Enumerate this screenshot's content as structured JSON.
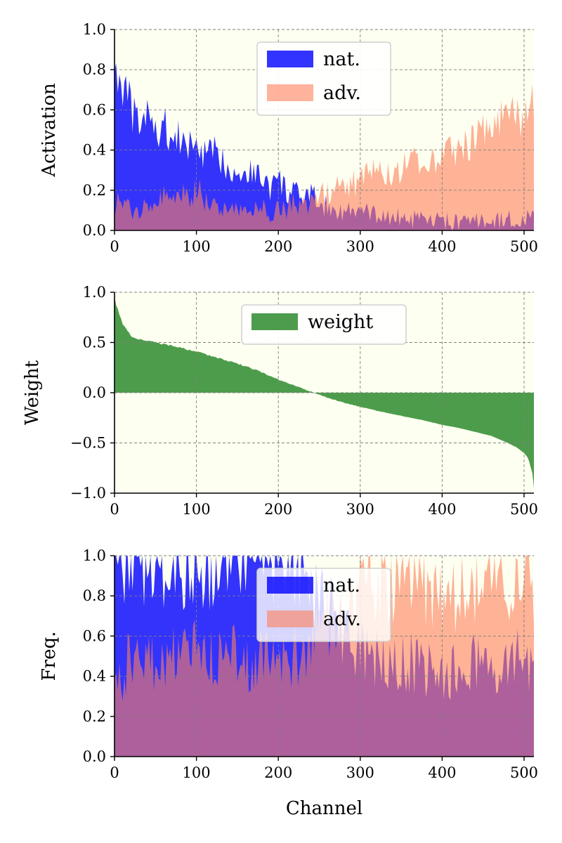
{
  "colors": {
    "nat": "#0000ff",
    "adv": "#ff7f5a",
    "weight": "#2e8b2e",
    "background": "#fdfff0",
    "overlap": "#9d4d96"
  },
  "chart_data": [
    {
      "type": "area",
      "ylabel": "Activation",
      "xlabel": "",
      "xlim": [
        0,
        512
      ],
      "ylim": [
        0,
        1
      ],
      "xticks": [
        "0",
        "100",
        "200",
        "300",
        "400",
        "500"
      ],
      "yticks": [
        "0.0",
        "0.2",
        "0.4",
        "0.6",
        "0.8",
        "1.0"
      ],
      "grid": true,
      "legend_position": "top-center",
      "legend": [
        "nat.",
        "adv."
      ],
      "series": [
        {
          "name": "nat.",
          "x": [
            0,
            5,
            10,
            20,
            30,
            40,
            50,
            60,
            70,
            80,
            90,
            100,
            110,
            120,
            130,
            140,
            150,
            160,
            170,
            180,
            190,
            200,
            210,
            220,
            230,
            240,
            250,
            260,
            280,
            300,
            320,
            340,
            360,
            380,
            400,
            420,
            440,
            460,
            480,
            500,
            512
          ],
          "values": [
            0.9,
            0.72,
            0.75,
            0.62,
            0.52,
            0.6,
            0.48,
            0.55,
            0.45,
            0.47,
            0.42,
            0.45,
            0.38,
            0.4,
            0.36,
            0.33,
            0.3,
            0.3,
            0.3,
            0.27,
            0.22,
            0.26,
            0.2,
            0.19,
            0.17,
            0.18,
            0.15,
            0.12,
            0.1,
            0.1,
            0.08,
            0.07,
            0.06,
            0.05,
            0.05,
            0.04,
            0.05,
            0.05,
            0.06,
            0.06,
            0.07
          ]
        },
        {
          "name": "adv.",
          "x": [
            0,
            5,
            10,
            20,
            30,
            40,
            50,
            60,
            70,
            80,
            90,
            100,
            110,
            120,
            130,
            140,
            150,
            160,
            170,
            180,
            190,
            200,
            210,
            220,
            230,
            240,
            250,
            260,
            280,
            300,
            320,
            340,
            360,
            380,
            400,
            420,
            440,
            460,
            480,
            500,
            512
          ],
          "values": [
            0.12,
            0.15,
            0.13,
            0.1,
            0.12,
            0.15,
            0.12,
            0.18,
            0.14,
            0.2,
            0.15,
            0.22,
            0.16,
            0.14,
            0.12,
            0.13,
            0.11,
            0.1,
            0.12,
            0.11,
            0.1,
            0.12,
            0.11,
            0.14,
            0.12,
            0.15,
            0.18,
            0.2,
            0.22,
            0.25,
            0.32,
            0.3,
            0.34,
            0.36,
            0.38,
            0.42,
            0.45,
            0.55,
            0.6,
            0.55,
            0.65
          ]
        }
      ]
    },
    {
      "type": "area",
      "ylabel": "Weight",
      "xlabel": "",
      "xlim": [
        0,
        512
      ],
      "ylim": [
        -1,
        1
      ],
      "xticks": [
        "0",
        "100",
        "200",
        "300",
        "400",
        "500"
      ],
      "yticks": [
        "−1.0",
        "−0.5",
        "0.0",
        "0.5",
        "1.0"
      ],
      "grid": true,
      "legend_position": "top-center",
      "legend": [
        "weight"
      ],
      "series": [
        {
          "name": "weight",
          "x": [
            0,
            2,
            5,
            10,
            20,
            30,
            50,
            75,
            100,
            125,
            150,
            175,
            200,
            220,
            240,
            260,
            280,
            300,
            320,
            350,
            380,
            400,
            420,
            440,
            460,
            480,
            490,
            500,
            505,
            510,
            512
          ],
          "values": [
            0.95,
            0.88,
            0.8,
            0.68,
            0.57,
            0.53,
            0.5,
            0.46,
            0.41,
            0.35,
            0.29,
            0.22,
            0.13,
            0.07,
            0.01,
            -0.05,
            -0.1,
            -0.14,
            -0.18,
            -0.23,
            -0.28,
            -0.32,
            -0.35,
            -0.39,
            -0.43,
            -0.5,
            -0.54,
            -0.6,
            -0.65,
            -0.8,
            -0.95
          ]
        }
      ]
    },
    {
      "type": "area",
      "ylabel": "Freq.",
      "xlabel": "Channel",
      "xlim": [
        0,
        512
      ],
      "ylim": [
        0,
        1
      ],
      "xticks": [
        "0",
        "100",
        "200",
        "300",
        "400",
        "500"
      ],
      "yticks": [
        "0.0",
        "0.2",
        "0.4",
        "0.6",
        "0.8",
        "1.0"
      ],
      "grid": true,
      "legend_position": "top-center",
      "legend": [
        "nat.",
        "adv."
      ],
      "series": [
        {
          "name": "nat.",
          "x": [
            0,
            5,
            10,
            20,
            40,
            60,
            80,
            100,
            120,
            140,
            160,
            180,
            200,
            210,
            220,
            230,
            240,
            250,
            260,
            270,
            280,
            290,
            300,
            320,
            340,
            360,
            380,
            400,
            420,
            440,
            460,
            480,
            500,
            512
          ],
          "values": [
            0.99,
            1.0,
            0.99,
            1.0,
            0.99,
            1.0,
            0.99,
            1.0,
            0.99,
            0.99,
            0.98,
            0.98,
            0.97,
            0.98,
            0.95,
            0.96,
            0.9,
            0.85,
            0.8,
            0.72,
            0.65,
            0.6,
            0.55,
            0.5,
            0.5,
            0.48,
            0.45,
            0.42,
            0.45,
            0.48,
            0.45,
            0.5,
            0.5,
            0.45
          ]
        },
        {
          "name": "adv.",
          "x": [
            0,
            5,
            10,
            20,
            40,
            60,
            80,
            100,
            120,
            140,
            160,
            180,
            200,
            210,
            220,
            230,
            240,
            250,
            260,
            270,
            280,
            290,
            300,
            320,
            340,
            360,
            380,
            400,
            420,
            440,
            460,
            480,
            500,
            512
          ],
          "values": [
            0.45,
            0.5,
            0.4,
            0.55,
            0.5,
            0.45,
            0.6,
            0.55,
            0.5,
            0.55,
            0.45,
            0.5,
            0.48,
            0.5,
            0.52,
            0.55,
            0.6,
            0.65,
            0.7,
            0.75,
            0.8,
            0.82,
            0.85,
            0.88,
            0.9,
            0.88,
            0.85,
            0.82,
            0.85,
            0.88,
            0.9,
            0.92,
            0.95,
            0.9
          ]
        }
      ]
    }
  ]
}
